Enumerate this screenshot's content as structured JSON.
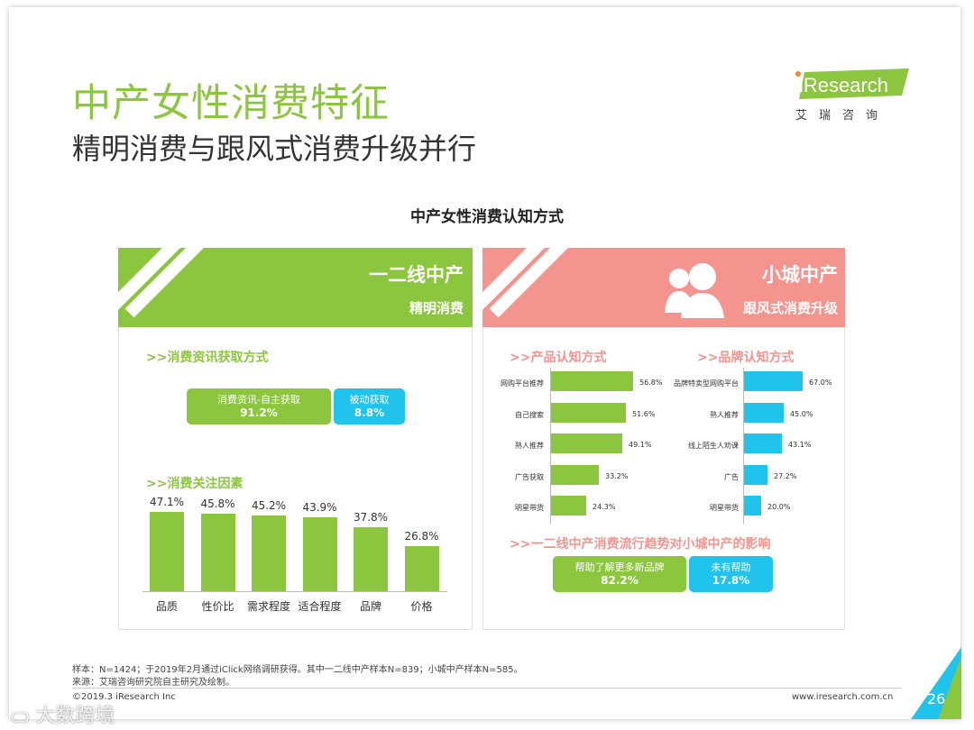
{
  "header": {
    "title": "中产女性消费特征",
    "subtitle": "精明消费与跟风式消费升级并行",
    "logo_text": "iResearch",
    "logo_sub": "艾瑞咨询"
  },
  "section_title": "中产女性消费认知方式",
  "left_panel": {
    "banner_title": "一二线中产",
    "banner_sub": "精明消费",
    "info_heading": ">>消费资讯获取方式",
    "pill_active": {
      "label": "消费资讯-自主获取",
      "value": "91.2%"
    },
    "pill_passive": {
      "label": "被动获取",
      "value": "8.8%"
    },
    "factors_heading": ">>消费关注因素",
    "factors": [
      {
        "category": "品质",
        "value": 47.1,
        "label": "47.1%"
      },
      {
        "category": "性价比",
        "value": 45.8,
        "label": "45.8%"
      },
      {
        "category": "需求程度",
        "value": 45.2,
        "label": "45.2%"
      },
      {
        "category": "适合程度",
        "value": 43.9,
        "label": "43.9%"
      },
      {
        "category": "品牌",
        "value": 37.8,
        "label": "37.8%"
      },
      {
        "category": "价格",
        "value": 26.8,
        "label": "26.8%"
      }
    ]
  },
  "right_panel": {
    "banner_title": "小城中产",
    "banner_sub": "跟风式消费升级",
    "product_heading": ">>产品认知方式",
    "product_items": [
      {
        "category": "网购平台推荐",
        "value": 56.8,
        "label": "56.8%"
      },
      {
        "category": "自己搜索",
        "value": 51.6,
        "label": "51.6%"
      },
      {
        "category": "熟人推荐",
        "value": 49.1,
        "label": "49.1%"
      },
      {
        "category": "广告获取",
        "value": 33.2,
        "label": "33.2%"
      },
      {
        "category": "明星带货",
        "value": 24.3,
        "label": "24.3%"
      }
    ],
    "brand_heading": ">>品牌认知方式",
    "brand_items": [
      {
        "category": "品牌特卖型网购平台",
        "value": 67.0,
        "label": "67.0%"
      },
      {
        "category": "熟人推荐",
        "value": 45.0,
        "label": "45.0%"
      },
      {
        "category": "线上陌生人劝课",
        "value": 43.1,
        "label": "43.1%"
      },
      {
        "category": "广告",
        "value": 27.2,
        "label": "27.2%"
      },
      {
        "category": "明星带货",
        "value": 20.0,
        "label": "20.0%"
      }
    ],
    "trend_heading": ">>一二线中产消费流行趋势对小城中产的影响",
    "pill_help": {
      "label": "帮助了解更多新品牌",
      "value": "82.2%"
    },
    "pill_nohelp": {
      "label": "未有帮助",
      "value": "17.8%"
    }
  },
  "footer": {
    "note1": "样本：N=1424；于2019年2月通过iClick网络调研获得。其中一二线中产样本N=839；小城中产样本N=585。",
    "note2": "来源：艾瑞咨询研究院自主研究及绘制。",
    "copyright": "©2019.3 iResearch Inc",
    "website": "www.iresearch.com.cn",
    "page": "26",
    "watermark": "大数跨境"
  },
  "colors": {
    "green": "#8cc63f",
    "pink": "#f4948f",
    "cyan": "#1fc3eb",
    "orange": "#f08a2c"
  },
  "chart_data": [
    {
      "type": "bar",
      "title": "",
      "categories": [
        "品质",
        "性价比",
        "需求程度",
        "适合程度",
        "品牌",
        "价格"
      ],
      "values": [
        47.1,
        45.8,
        45.2,
        43.9,
        37.8,
        26.8
      ],
      "unit": "%"
    },
    {
      "type": "bar",
      "orientation": "horizontal",
      "categories": [
        "网购平台推荐",
        "自己搜索",
        "熟人推荐",
        "广告获取",
        "明星带货"
      ],
      "values": [
        56.8,
        51.6,
        49.1,
        33.2,
        24.3
      ],
      "unit": "%"
    },
    {
      "type": "bar",
      "orientation": "horizontal",
      "categories": [
        "品牌特卖型网购平台",
        "熟人推荐",
        "线上陌生人劝课",
        "广告",
        "明星带货"
      ],
      "values": [
        67.0,
        45.0,
        43.1,
        27.2,
        20.0
      ],
      "unit": "%"
    }
  ]
}
